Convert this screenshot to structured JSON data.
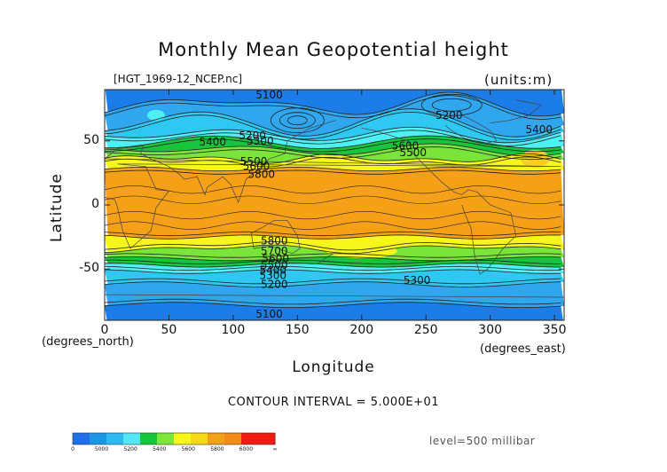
{
  "title": "Monthly Mean Geopotential height",
  "file_label": "[HGT_1969-12_NCEP.nc]",
  "units_label": "(units:m)",
  "x_axis": {
    "label": "Longitude",
    "unit_label": "(degrees_east)",
    "ticks": [
      "0",
      "50",
      "100",
      "150",
      "200",
      "250",
      "300",
      "350"
    ],
    "range": [
      0,
      357.5
    ]
  },
  "y_axis": {
    "label": "Latitude",
    "unit_label": "(degrees_north)",
    "ticks": [
      "50",
      "0",
      "-50"
    ],
    "range": [
      -90,
      90
    ]
  },
  "contour_labels": [
    {
      "text": "5100",
      "lon": 128,
      "lat": 86
    },
    {
      "text": "5200",
      "lon": 115,
      "lat": 54
    },
    {
      "text": "5300",
      "lon": 121,
      "lat": 50
    },
    {
      "text": "5400",
      "lon": 84,
      "lat": 49
    },
    {
      "text": "5500",
      "lon": 116,
      "lat": 34
    },
    {
      "text": "5600",
      "lon": 118,
      "lat": 30
    },
    {
      "text": "5800",
      "lon": 122,
      "lat": 24
    },
    {
      "text": "5200",
      "lon": 268,
      "lat": 70
    },
    {
      "text": "5600",
      "lon": 234,
      "lat": 46
    },
    {
      "text": "5500",
      "lon": 240,
      "lat": 41
    },
    {
      "text": "5400",
      "lon": 338,
      "lat": 59
    },
    {
      "text": "5800",
      "lon": 132,
      "lat": -28
    },
    {
      "text": "5700",
      "lon": 132,
      "lat": -36
    },
    {
      "text": "5600",
      "lon": 133,
      "lat": -42
    },
    {
      "text": "5500",
      "lon": 132,
      "lat": -47
    },
    {
      "text": "5400",
      "lon": 131,
      "lat": -51
    },
    {
      "text": "5300",
      "lon": 131,
      "lat": -55
    },
    {
      "text": "5200",
      "lon": 132,
      "lat": -62
    },
    {
      "text": "5300",
      "lon": 243,
      "lat": -59
    },
    {
      "text": "5100",
      "lon": 128,
      "lat": -85
    }
  ],
  "contour_interval": "CONTOUR INTERVAL = 5.000E+01",
  "level": "level=500 millibar",
  "colorbar": {
    "labels": [
      "0",
      "5000",
      "5200",
      "5400",
      "5600",
      "5800",
      "6000",
      "∞"
    ],
    "colors": [
      "#1e6fe8",
      "#1c96e6",
      "#2fb9f0",
      "#52e6f6",
      "#16c63a",
      "#7ee639",
      "#f6f619",
      "#f6d818",
      "#f3a019",
      "#f38a19",
      "#f01b11",
      "#f01b11"
    ]
  },
  "field_colors": {
    "below_5000": "#1c7de8",
    "5000_5200": "#2fa6ee",
    "5200_5400": "#2ec8f2",
    "5400_5500": "#4ef0f4",
    "5500_5600": "#18c43c",
    "5600_5700": "#7ae43a",
    "5700_5800": "#f6f61a",
    "5800_5900": "#f6d01a",
    "above_5900": "#f5a016"
  }
}
